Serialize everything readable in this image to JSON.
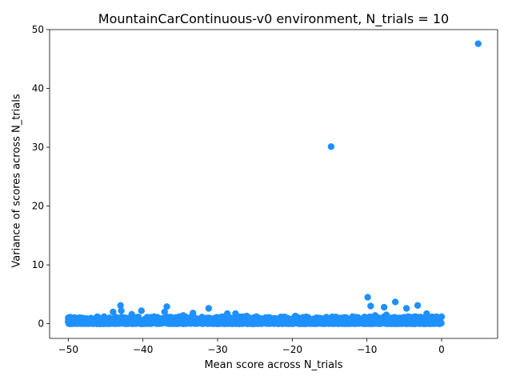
{
  "chart_data": {
    "type": "scatter",
    "title": "MountainCarContinuous-v0 environment, N_trials = 10",
    "xlabel": "Mean score across N_trials",
    "ylabel": "Variance of scores across N_trials",
    "xlim": [
      -52.5,
      7.5
    ],
    "ylim": [
      -2.5,
      50.0
    ],
    "x_ticks": [
      -50,
      -40,
      -30,
      -20,
      -10,
      0
    ],
    "x_tick_labels": [
      "−50",
      "−40",
      "−30",
      "−20",
      "−10",
      "0"
    ],
    "y_ticks": [
      0,
      10,
      20,
      30,
      40,
      50
    ],
    "y_tick_labels": [
      "0",
      "10",
      "20",
      "30",
      "40",
      "50"
    ],
    "grid": false,
    "marker_color": "#1e90ff",
    "series": [
      {
        "points": [
          [
            4.9,
            47.6
          ],
          [
            -14.8,
            30.1
          ],
          [
            -9.9,
            4.5
          ],
          [
            -6.2,
            3.7
          ],
          [
            -9.5,
            3.0
          ],
          [
            -3.2,
            3.1
          ],
          [
            -7.7,
            2.8
          ],
          [
            -4.7,
            2.6
          ],
          [
            -43.0,
            3.1
          ],
          [
            -36.8,
            2.9
          ],
          [
            -31.2,
            2.6
          ],
          [
            -42.9,
            2.2
          ],
          [
            -40.2,
            2.2
          ],
          [
            -44.0,
            2.0
          ],
          [
            -37.1,
            2.0
          ],
          [
            -33.3,
            1.8
          ],
          [
            -28.7,
            1.7
          ],
          [
            -27.6,
            1.7
          ],
          [
            -2.0,
            1.7
          ],
          [
            -41.5,
            1.6
          ],
          [
            -19.6,
            1.3
          ],
          [
            -11.9,
            1.2
          ],
          [
            -8.9,
            1.4
          ],
          [
            -7.4,
            1.5
          ],
          [
            -45.2,
            1.2
          ],
          [
            -34.6,
            1.4
          ],
          [
            -26.1,
            1.3
          ],
          [
            -24.8,
            1.2
          ],
          [
            -16.4,
            0.8
          ],
          [
            -22.0,
            0.8
          ],
          [
            -29.5,
            1.1
          ],
          [
            -38.5,
            1.2
          ],
          [
            -46.8,
            0.7
          ]
        ],
        "band": {
          "x_range": [
            -50.0,
            0.0
          ],
          "y_range": [
            0.0,
            1.2
          ]
        }
      }
    ]
  }
}
